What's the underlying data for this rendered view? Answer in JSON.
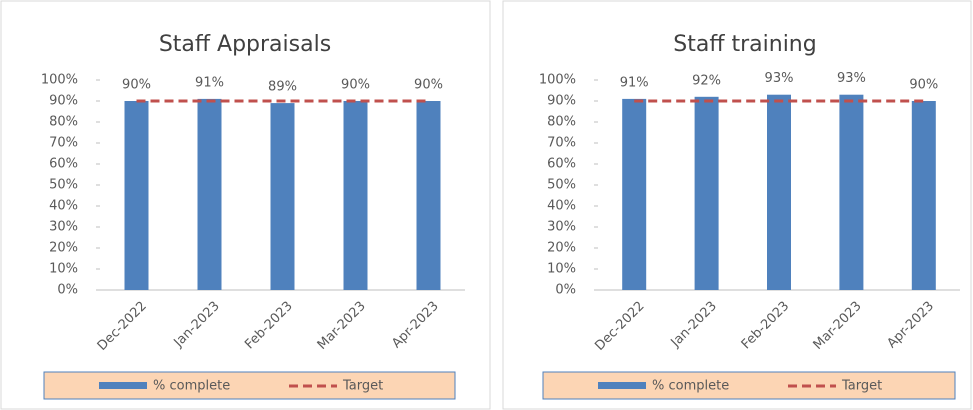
{
  "chart_data": [
    {
      "type": "bar",
      "title": "Staff Appraisals",
      "categories": [
        "Dec-2022",
        "Jan-2023",
        "Feb-2023",
        "Mar-2023",
        "Apr-2023"
      ],
      "series": [
        {
          "name": "% complete",
          "type": "bar",
          "color": "#4f81bd",
          "values": [
            90,
            91,
            89,
            90,
            90
          ],
          "value_labels": [
            "90%",
            "91%",
            "89%",
            "90%",
            "90%"
          ]
        },
        {
          "name": "Target",
          "type": "line",
          "line_style": "dashed",
          "color": "#c0504d",
          "values": [
            90,
            90,
            90,
            90,
            90
          ]
        }
      ],
      "ylim": [
        0,
        100
      ],
      "yticks": [
        {
          "value": 0,
          "label": "0%"
        },
        {
          "value": 10,
          "label": "10%"
        },
        {
          "value": 20,
          "label": "20%"
        },
        {
          "value": 30,
          "label": "30%"
        },
        {
          "value": 40,
          "label": "40%"
        },
        {
          "value": 50,
          "label": "50%"
        },
        {
          "value": 60,
          "label": "60%"
        },
        {
          "value": 70,
          "label": "70%"
        },
        {
          "value": 80,
          "label": "80%"
        },
        {
          "value": 90,
          "label": "90%"
        },
        {
          "value": 100,
          "label": "100%"
        }
      ],
      "legend": "bottom"
    },
    {
      "type": "bar",
      "title": "Staff training",
      "categories": [
        "Dec-2022",
        "Jan-2023",
        "Feb-2023",
        "Mar-2023",
        "Apr-2023"
      ],
      "series": [
        {
          "name": "% complete",
          "type": "bar",
          "color": "#4f81bd",
          "values": [
            91,
            92,
            93,
            93,
            90
          ],
          "value_labels": [
            "91%",
            "92%",
            "93%",
            "93%",
            "90%"
          ]
        },
        {
          "name": "Target",
          "type": "line",
          "line_style": "dashed",
          "color": "#c0504d",
          "values": [
            90,
            90,
            90,
            90,
            90
          ]
        }
      ],
      "ylim": [
        0,
        100
      ],
      "yticks": [
        {
          "value": 0,
          "label": "0%"
        },
        {
          "value": 10,
          "label": "10%"
        },
        {
          "value": 20,
          "label": "20%"
        },
        {
          "value": 30,
          "label": "30%"
        },
        {
          "value": 40,
          "label": "40%"
        },
        {
          "value": 50,
          "label": "50%"
        },
        {
          "value": 60,
          "label": "60%"
        },
        {
          "value": 70,
          "label": "70%"
        },
        {
          "value": 80,
          "label": "80%"
        },
        {
          "value": 90,
          "label": "90%"
        },
        {
          "value": 100,
          "label": "100%"
        }
      ],
      "legend": "bottom"
    }
  ]
}
